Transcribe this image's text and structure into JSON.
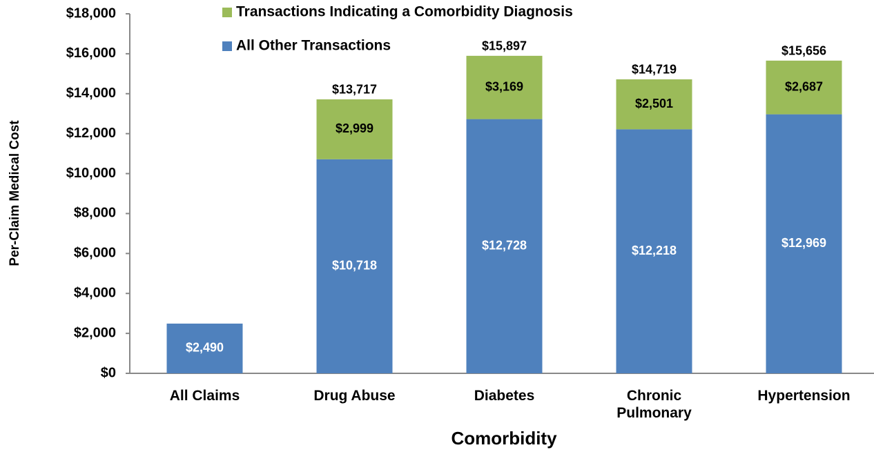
{
  "chart_data": {
    "type": "stacked_bar",
    "xlabel": "Comorbidity",
    "ylabel": "Per-Claim Medical Cost",
    "categories": [
      "All Claims",
      "Drug Abuse",
      "Diabetes",
      "Chronic Pulmonary",
      "Hypertension"
    ],
    "series": [
      {
        "name": "All Other Transactions",
        "color": "#4f81bd",
        "label_color": "#ffffff",
        "values": [
          2490,
          10718,
          12728,
          12218,
          12969
        ],
        "value_labels": [
          "$2,490",
          "$10,718",
          "$12,728",
          "$12,218",
          "$12,969"
        ]
      },
      {
        "name": "Transactions Indicating a Comorbidity Diagnosis",
        "color": "#9bbb59",
        "label_color": "#000000",
        "values": [
          null,
          2999,
          3169,
          2501,
          2687
        ],
        "value_labels": [
          null,
          "$2,999",
          "$3,169",
          "$2,501",
          "$2,687"
        ]
      }
    ],
    "totals": [
      null,
      13717,
      15897,
      14719,
      15656
    ],
    "total_labels": [
      null,
      "$13,717",
      "$15,897",
      "$14,719",
      "$15,656"
    ],
    "ylim": [
      0,
      18000
    ],
    "yticks": [
      {
        "value": 0,
        "label": "$0"
      },
      {
        "value": 2000,
        "label": "$2,000"
      },
      {
        "value": 4000,
        "label": "$4,000"
      },
      {
        "value": 6000,
        "label": "$6,000"
      },
      {
        "value": 8000,
        "label": "$8,000"
      },
      {
        "value": 10000,
        "label": "$10,000"
      },
      {
        "value": 12000,
        "label": "$12,000"
      },
      {
        "value": 14000,
        "label": "$14,000"
      },
      {
        "value": 16000,
        "label": "$16,000"
      },
      {
        "value": 18000,
        "label": "$18,000"
      }
    ],
    "grid": false,
    "legend_position": "top"
  }
}
